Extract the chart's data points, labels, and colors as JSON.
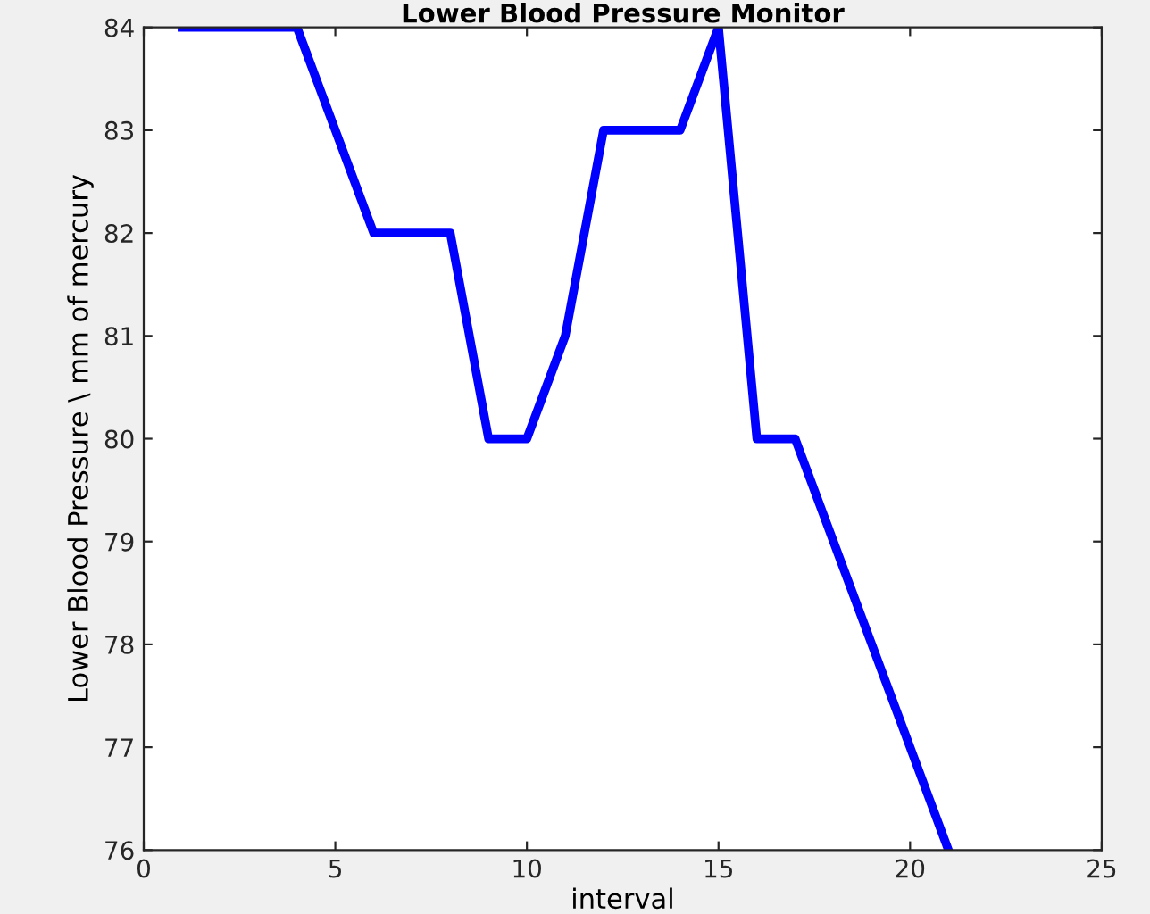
{
  "chart_data": {
    "type": "line",
    "title": "Lower Blood Pressure Monitor",
    "xlabel": "interval",
    "ylabel": "Lower Blood Pressure \\ mm of mercury",
    "x": [
      1,
      2,
      3,
      4,
      5,
      6,
      7,
      8,
      9,
      10,
      11,
      12,
      13,
      14,
      15,
      16,
      17,
      18,
      19,
      20,
      21
    ],
    "series": [
      {
        "color": "#0000ff",
        "values": [
          84,
          84,
          84,
          84,
          83,
          82,
          82,
          82,
          80,
          80,
          81,
          83,
          83,
          83,
          84,
          80,
          80,
          79,
          78,
          77,
          76
        ]
      }
    ],
    "xlim": [
      0,
      25
    ],
    "xticks": [
      0,
      5,
      10,
      15,
      20,
      25
    ],
    "ylim": [
      76,
      84
    ],
    "yticks": [
      76,
      77,
      78,
      79,
      80,
      81,
      82,
      83,
      84
    ],
    "grid": false,
    "legend": false,
    "marker": "none",
    "line_style": "solid"
  }
}
